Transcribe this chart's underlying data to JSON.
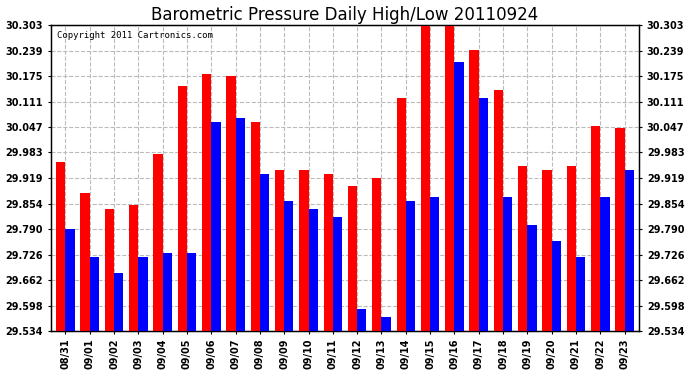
{
  "title": "Barometric Pressure Daily High/Low 20110924",
  "copyright": "Copyright 2011 Cartronics.com",
  "categories": [
    "08/31",
    "09/01",
    "09/02",
    "09/03",
    "09/04",
    "09/05",
    "09/06",
    "09/07",
    "09/08",
    "09/09",
    "09/10",
    "09/11",
    "09/12",
    "09/13",
    "09/14",
    "09/15",
    "09/16",
    "09/17",
    "09/18",
    "09/19",
    "09/20",
    "09/21",
    "09/22",
    "09/23"
  ],
  "high_values": [
    29.96,
    29.88,
    29.84,
    29.85,
    29.98,
    30.15,
    30.18,
    30.175,
    30.06,
    29.94,
    29.94,
    29.93,
    29.9,
    29.92,
    30.12,
    30.3,
    30.305,
    30.24,
    30.14,
    29.95,
    29.94,
    29.95,
    30.05,
    30.045
  ],
  "low_values": [
    29.79,
    29.72,
    29.68,
    29.72,
    29.73,
    29.73,
    30.06,
    30.07,
    29.93,
    29.86,
    29.84,
    29.82,
    29.59,
    29.57,
    29.86,
    29.87,
    30.21,
    30.12,
    29.87,
    29.8,
    29.76,
    29.72,
    29.87,
    29.94
  ],
  "high_color": "#FF0000",
  "low_color": "#0000FF",
  "background_color": "#FFFFFF",
  "grid_color": "#BBBBBB",
  "ylim_min": 29.534,
  "ylim_max": 30.303,
  "yticks": [
    29.534,
    29.598,
    29.662,
    29.726,
    29.79,
    29.854,
    29.919,
    29.983,
    30.047,
    30.111,
    30.175,
    30.239,
    30.303
  ],
  "bar_width": 0.38,
  "title_fontsize": 12,
  "tick_fontsize": 7,
  "copyright_fontsize": 6.5
}
